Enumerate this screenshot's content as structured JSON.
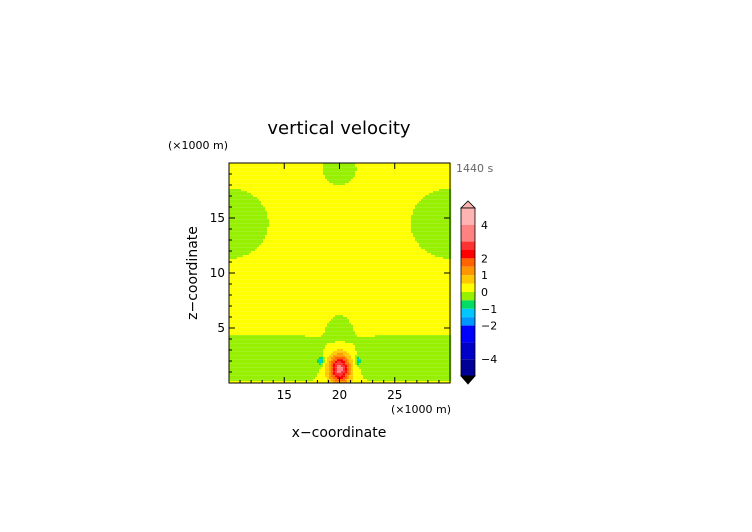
{
  "chart_data": {
    "type": "heatmap",
    "title": "vertical velocity",
    "time_label": "1440 s",
    "xlabel": "x−coordinate",
    "ylabel": "z−coordinate",
    "x_unit": "(×1000 m)",
    "y_unit": "(×1000 m)",
    "xlim": [
      10,
      30
    ],
    "ylim": [
      0,
      20
    ],
    "x_ticks": [
      15,
      20,
      25
    ],
    "y_ticks": [
      5,
      10,
      15
    ],
    "fields": {
      "background_value": 0.25,
      "updraft_center": [
        20,
        1.3
      ],
      "updraft_peak": 3.0
    },
    "colorbar": {
      "labels": [
        {
          "value": 4,
          "label": "4"
        },
        {
          "value": 2,
          "label": "2"
        },
        {
          "value": 1,
          "label": "1"
        },
        {
          "value": 0,
          "label": "0"
        },
        {
          "value": -1,
          "label": "−1"
        },
        {
          "value": -2,
          "label": "−2"
        },
        {
          "value": -4,
          "label": "−4"
        }
      ],
      "levels": [
        {
          "lo": 4,
          "hi": 5,
          "color": "#ffb4b4"
        },
        {
          "lo": 3,
          "hi": 4,
          "color": "#ff8282"
        },
        {
          "lo": 2.5,
          "hi": 3,
          "color": "#ff3232"
        },
        {
          "lo": 2,
          "hi": 2.5,
          "color": "#ff0000"
        },
        {
          "lo": 1.5,
          "hi": 2,
          "color": "#ff6400"
        },
        {
          "lo": 1,
          "hi": 1.5,
          "color": "#ff9600"
        },
        {
          "lo": 0.5,
          "hi": 1,
          "color": "#ffc800"
        },
        {
          "lo": 0,
          "hi": 0.5,
          "color": "#ffff00"
        },
        {
          "lo": -0.5,
          "hi": 0,
          "color": "#96f000"
        },
        {
          "lo": -1,
          "hi": -0.5,
          "color": "#00dc64"
        },
        {
          "lo": -1.5,
          "hi": -1,
          "color": "#00c8ff"
        },
        {
          "lo": -2,
          "hi": -1.5,
          "color": "#0096ff"
        },
        {
          "lo": -3,
          "hi": -2,
          "color": "#0000ff"
        },
        {
          "lo": -4,
          "hi": -3,
          "color": "#0000c8"
        },
        {
          "lo": -5,
          "hi": -4,
          "color": "#000096"
        }
      ],
      "extend_top_color": "#ffb4b4",
      "extend_bottom_color": "#000000"
    }
  }
}
